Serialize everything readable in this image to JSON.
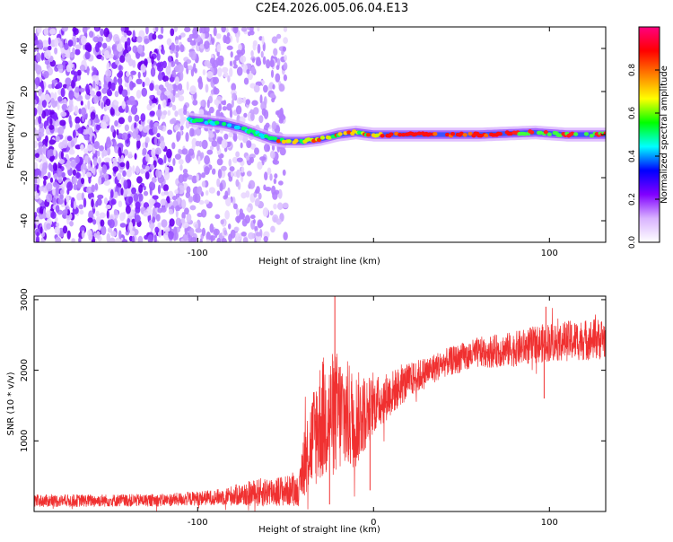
{
  "title": "C2E4.2026.005.06.04.E13",
  "chart_data": [
    {
      "type": "heatmap",
      "xlabel": "Height of straight line (km)",
      "ylabel": "Frequency (Hz)",
      "xlim": [
        -193,
        132
      ],
      "ylim": [
        -50,
        50
      ],
      "x_ticks": [
        -100,
        0,
        100
      ],
      "x_tick_labels": [
        "-100",
        "",
        "100"
      ],
      "y_ticks": [
        -40,
        -20,
        0,
        20,
        40
      ],
      "y_tick_labels": [
        "-40",
        "-20",
        "0",
        "20",
        "40"
      ],
      "grid": false,
      "noise_region_x": [
        -193,
        -50
      ],
      "signal_track": [
        {
          "x": -105,
          "f": 7
        },
        {
          "x": -95,
          "f": 6
        },
        {
          "x": -85,
          "f": 5
        },
        {
          "x": -75,
          "f": 3
        },
        {
          "x": -65,
          "f": 0
        },
        {
          "x": -58,
          "f": -2
        },
        {
          "x": -50,
          "f": -3
        },
        {
          "x": -40,
          "f": -3
        },
        {
          "x": -30,
          "f": -2
        },
        {
          "x": -20,
          "f": 0
        },
        {
          "x": -10,
          "f": 1
        },
        {
          "x": 0,
          "f": 0
        },
        {
          "x": 20,
          "f": 0
        },
        {
          "x": 60,
          "f": 0
        },
        {
          "x": 92,
          "f": 1
        },
        {
          "x": 110,
          "f": 0
        },
        {
          "x": 132,
          "f": 0
        }
      ],
      "colorbar": {
        "label": "Normalized spectral amplitude",
        "range": [
          0,
          1
        ],
        "ticks": [
          0.0,
          0.2,
          0.4,
          0.6,
          0.8
        ],
        "tick_labels": [
          "0.0",
          "0.2",
          "0.4",
          "0.6",
          "0.8"
        ],
        "colors": [
          "#ffffff",
          "#d9b3ff",
          "#8000ff",
          "#0000ff",
          "#00ffff",
          "#00ff00",
          "#ffff00",
          "#ff8000",
          "#ff0000",
          "#ff0080"
        ]
      }
    },
    {
      "type": "line",
      "xlabel": "Height of straight line (km)",
      "ylabel": "SNR (10 * v/v)",
      "xlim": [
        -193,
        132
      ],
      "ylim": [
        0,
        3050
      ],
      "x_ticks": [
        -100,
        0,
        100
      ],
      "x_tick_labels": [
        "-100",
        "0",
        "100"
      ],
      "y_ticks": [
        1000,
        2000,
        3000
      ],
      "y_tick_labels": [
        "1000",
        "2000",
        "3000"
      ],
      "grid": false,
      "line_color": "#f03030",
      "envelope": [
        {
          "x": -193,
          "mean": 150,
          "spread": 90
        },
        {
          "x": -120,
          "mean": 160,
          "spread": 90
        },
        {
          "x": -90,
          "mean": 200,
          "spread": 110
        },
        {
          "x": -60,
          "mean": 280,
          "spread": 220
        },
        {
          "x": -42,
          "mean": 300,
          "spread": 220
        },
        {
          "x": -40,
          "mean": 700,
          "spread": 500
        },
        {
          "x": -30,
          "mean": 1300,
          "spread": 900
        },
        {
          "x": -20,
          "mean": 1400,
          "spread": 900
        },
        {
          "x": -10,
          "mean": 1300,
          "spread": 700
        },
        {
          "x": 0,
          "mean": 1500,
          "spread": 400
        },
        {
          "x": 20,
          "mean": 1850,
          "spread": 250
        },
        {
          "x": 40,
          "mean": 2100,
          "spread": 200
        },
        {
          "x": 60,
          "mean": 2250,
          "spread": 220
        },
        {
          "x": 80,
          "mean": 2300,
          "spread": 250
        },
        {
          "x": 100,
          "mean": 2400,
          "spread": 280
        },
        {
          "x": 132,
          "mean": 2450,
          "spread": 300
        }
      ],
      "spikes": [
        {
          "x": -22,
          "y": 3050
        },
        {
          "x": -25,
          "y": 100
        },
        {
          "x": -2,
          "y": 300
        },
        {
          "x": 97,
          "y": 1600
        },
        {
          "x": 98,
          "y": 2900
        }
      ]
    }
  ]
}
